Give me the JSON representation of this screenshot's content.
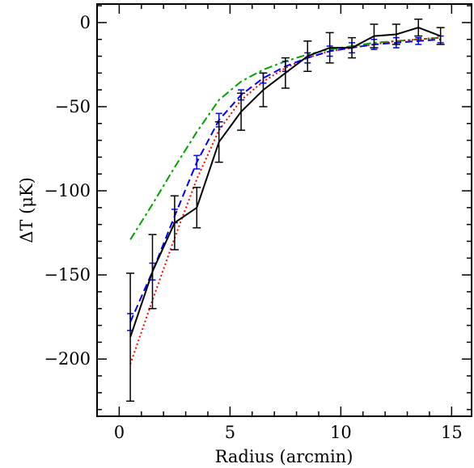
{
  "chart_data": {
    "type": "line",
    "xlabel": "Radius (arcmin)",
    "ylabel": "ΔT (μK)",
    "xlim": [
      -1.0,
      15.9
    ],
    "ylim": [
      -234,
      11
    ],
    "x_ticks": [
      0,
      5,
      10,
      15
    ],
    "y_ticks": [
      0,
      -50,
      -100,
      -150,
      -200
    ],
    "x_tick_labels": [
      "0",
      "5",
      "10",
      "15"
    ],
    "y_tick_labels": [
      "0",
      "−50",
      "−100",
      "−150",
      "−200"
    ],
    "grid": false,
    "legend": "none",
    "series": [
      {
        "style": "solid-with-errorbars",
        "color": "#000000",
        "x": [
          0.5,
          1.5,
          2.5,
          3.5,
          4.5,
          5.5,
          6.5,
          7.5,
          8.5,
          9.5,
          10.5,
          11.5,
          12.5,
          13.5,
          14.5
        ],
        "y": [
          -187,
          -148,
          -119,
          -110,
          -71,
          -53,
          -40,
          -30,
          -20,
          -15,
          -15,
          -8,
          -7,
          -3,
          -8
        ],
        "err": [
          38,
          22,
          16,
          12,
          12,
          11,
          10,
          9,
          9,
          9,
          6,
          7,
          6,
          5,
          5
        ]
      },
      {
        "style": "dashed-with-errorbars",
        "color": "#0000ff",
        "x": [
          0.5,
          1.5,
          2.5,
          3.5,
          4.5,
          5.5,
          6.5,
          7.5,
          8.5,
          9.5,
          10.5,
          11.5,
          12.5,
          13.5,
          14.5
        ],
        "y": [
          -178,
          -148,
          -115,
          -83,
          -58,
          -43,
          -33,
          -26,
          -21,
          -17,
          -15,
          -13,
          -12,
          -11,
          -10
        ],
        "err": [
          5,
          5,
          4,
          4,
          4,
          3,
          3,
          3,
          3,
          3,
          3,
          3,
          3,
          2,
          2
        ]
      },
      {
        "style": "dotted",
        "color": "#ff0000",
        "x": [
          0.5,
          1.5,
          2.5,
          3.5,
          4.5,
          5.5,
          6.5,
          7.5,
          8.5,
          9.5,
          10.5,
          11.5,
          12.5,
          13.5,
          14.5
        ],
        "y": [
          -203,
          -165,
          -128,
          -93,
          -64,
          -46,
          -35,
          -27,
          -21,
          -17,
          -15,
          -13,
          -11,
          -10,
          -9
        ]
      },
      {
        "style": "dash-dot",
        "color": "#00a000",
        "x": [
          0.5,
          1.5,
          2.5,
          3.5,
          4.5,
          5.5,
          6.5,
          7.5,
          8.5,
          9.5,
          10.5,
          11.5,
          12.5,
          13.5,
          14.5
        ],
        "y": [
          -129,
          -108,
          -86,
          -65,
          -46,
          -35,
          -28,
          -23,
          -19,
          -16,
          -14,
          -12,
          -11,
          -10,
          -9
        ]
      }
    ]
  }
}
